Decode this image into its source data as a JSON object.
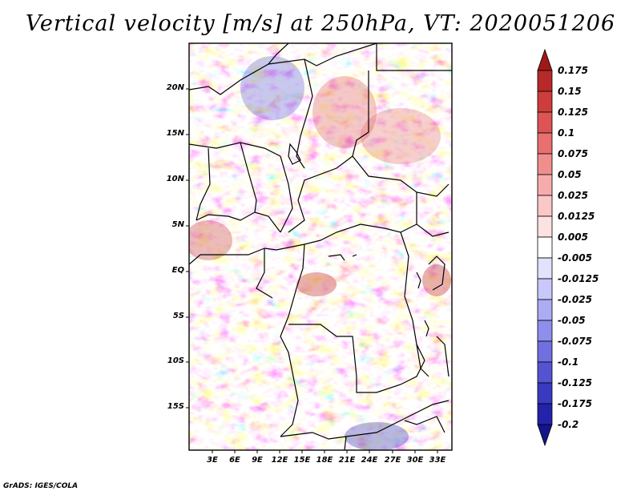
{
  "title": "Vertical velocity [m/s] at 250hPa, VT: 2020051206",
  "credit": "GrADS: IGES/COLA",
  "map": {
    "lat_labels": [
      "20N",
      "15N",
      "10N",
      "5N",
      "EQ",
      "5S",
      "10S",
      "15S"
    ],
    "lon_labels": [
      "3E",
      "6E",
      "9E",
      "12E",
      "15E",
      "18E",
      "21E",
      "24E",
      "27E",
      "30E",
      "33E"
    ],
    "field": "vertical velocity",
    "pressure_level": "250hPa"
  },
  "colorbar": {
    "labels": [
      "0.175",
      "0.15",
      "0.125",
      "0.1",
      "0.075",
      "0.05",
      "0.025",
      "0.0125",
      "0.005",
      "-0.005",
      "-0.0125",
      "-0.025",
      "-0.05",
      "-0.075",
      "-0.1",
      "-0.125",
      "-0.175",
      "-0.2"
    ],
    "colors": [
      "#a01818",
      "#b82a2a",
      "#cd3d3d",
      "#dc5454",
      "#e87070",
      "#f08e8e",
      "#f6acac",
      "#fbc8c8",
      "#fde2e2",
      "#ffffff",
      "#e2e2fd",
      "#c8c8fa",
      "#acacf4",
      "#8e8eec",
      "#7070e0",
      "#5454d2",
      "#3a3ac0",
      "#2222aa",
      "#14148c"
    ]
  }
}
